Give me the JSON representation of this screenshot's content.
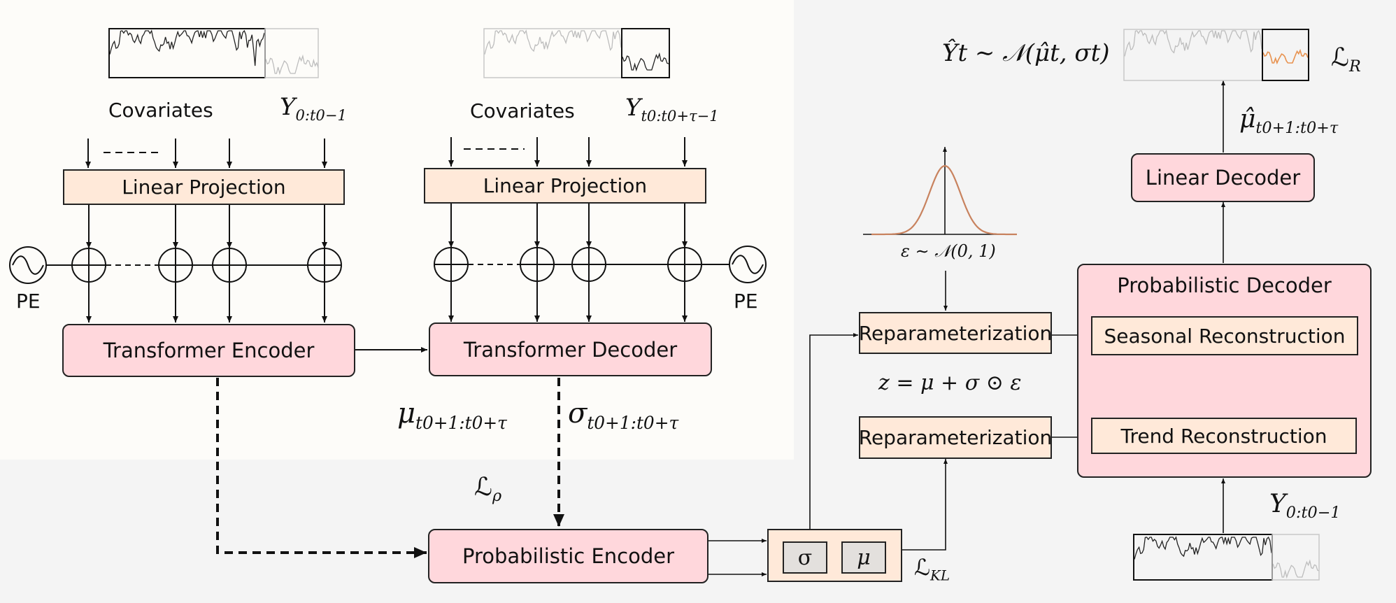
{
  "encoder_side": {
    "covariates_label": "Covariates",
    "target_label": "Y",
    "target_sub": "0:t0−1",
    "projection_label": "Linear Projection",
    "pe_label": "PE",
    "encoder_label": "Transformer Encoder"
  },
  "decoder_side": {
    "covariates_label": "Covariates",
    "target_label": "Y",
    "target_sub": "t0:t0+τ−1",
    "projection_label": "Linear Projection",
    "pe_label": "PE",
    "decoder_label": "Transformer Decoder"
  },
  "outputs": {
    "mu_symbol": "μ",
    "mu_sub": "t0+1:t0+τ",
    "sigma_symbol": "σ",
    "sigma_sub": "t0+1:t0+τ",
    "loss_rho": "ℒ",
    "loss_rho_sub": "ρ"
  },
  "latent": {
    "prob_encoder_label": "Probabilistic Encoder",
    "sigma_param": "σ",
    "mu_param": "μ",
    "loss_kl": "ℒ",
    "loss_kl_sub": "KL",
    "noise_formula": "ε ∼ 𝒩(0, 1)",
    "reparam_top_label": "Reparameterization",
    "reparam_bottom_label": "Reparameterization",
    "z_formula": "z = μ + σ ⊙ ε"
  },
  "reconstruction": {
    "prob_decoder_label": "Probabilistic Decoder",
    "seasonal_label": "Seasonal Reconstruction",
    "trend_label": "Trend Reconstruction",
    "linear_decoder_label": "Linear Decoder",
    "mu_hat_symbol": "μ̂",
    "mu_hat_sub": "t0+1:t0+τ",
    "output_formula": "Ŷt ∼ 𝒩(μ̂t, σt)",
    "loss_r": "ℒ",
    "loss_r_sub": "R",
    "input_label": "Y",
    "input_sub": "0:t0−1"
  },
  "colors": {
    "block_pink": "#ffd7dc",
    "block_peach": "#ffe9d9",
    "forecast_orange": "#e8924f",
    "gaussian_curve": "#c8825e"
  }
}
